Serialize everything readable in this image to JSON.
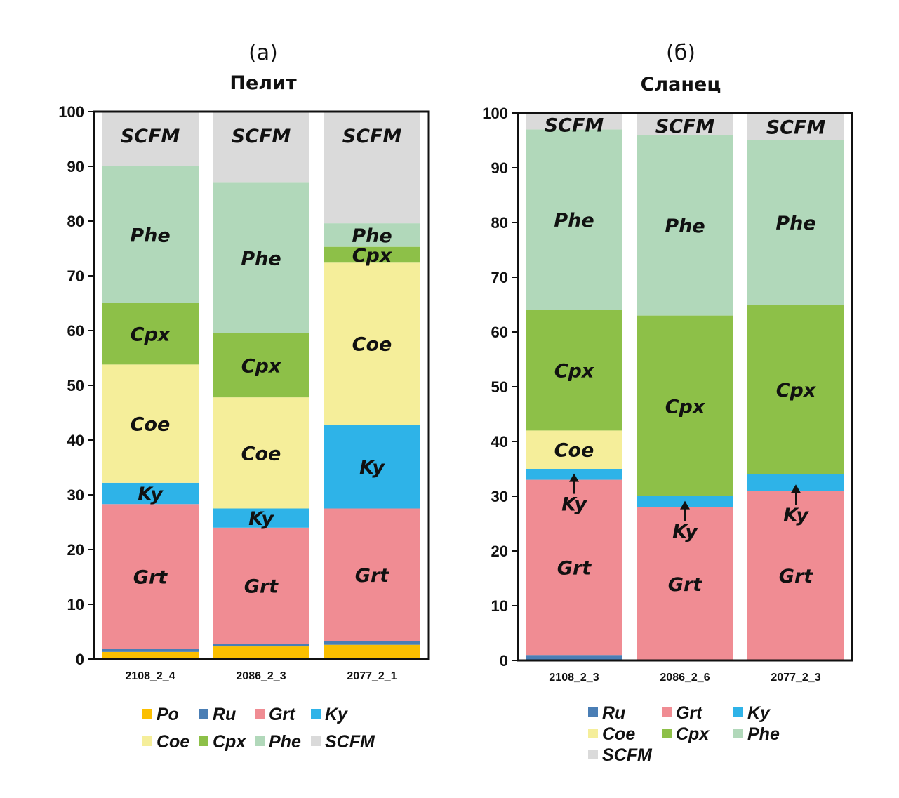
{
  "chart_data": [
    {
      "type": "bar",
      "stacked": true,
      "panel_tag": "(а)",
      "title": "Пелит",
      "xlabel": "",
      "ylabel": "",
      "ylim": [
        0,
        100
      ],
      "yticks": [
        0,
        10,
        20,
        30,
        40,
        50,
        60,
        70,
        80,
        90,
        100
      ],
      "grid": false,
      "legend_position": "bottom",
      "categories": [
        "2108_2_4",
        "2086_2_3",
        "2077_2_1"
      ],
      "series": [
        {
          "name": "Po",
          "color": "#FBBF00",
          "values": [
            1.3,
            2.3,
            2.6
          ]
        },
        {
          "name": "Ru",
          "color": "#4A7EB5",
          "values": [
            0.5,
            0.5,
            0.7
          ]
        },
        {
          "name": "Grt",
          "color": "#F08C93",
          "values": [
            26.5,
            21.2,
            24.2
          ]
        },
        {
          "name": "Ky",
          "color": "#2EB3E8",
          "values": [
            3.9,
            3.5,
            15.3
          ]
        },
        {
          "name": "Coe",
          "color": "#F5EE9A",
          "values": [
            21.6,
            20.3,
            29.6
          ]
        },
        {
          "name": "Cpx",
          "color": "#8DC048",
          "values": [
            11.2,
            11.7,
            2.9
          ]
        },
        {
          "name": "Phe",
          "color": "#B1D8BA",
          "values": [
            25.0,
            27.5,
            4.3
          ]
        },
        {
          "name": "SCFM",
          "color": "#DADADA",
          "values": [
            10.0,
            13.0,
            20.4
          ]
        }
      ],
      "segment_labels": [
        [
          "",
          "",
          "Grt",
          "Ky",
          "Coe",
          "Cpx",
          "Phe",
          "SCFM"
        ],
        [
          "",
          "",
          "Grt",
          "Ky",
          "Coe",
          "Cpx",
          "Phe",
          "SCFM"
        ],
        [
          "",
          "",
          "Grt",
          "Ky",
          "Coe",
          "Cpx",
          "Phe",
          "SCFM"
        ]
      ],
      "legend": [
        "Po",
        "Ru",
        "Grt",
        "Ky",
        "Coe",
        "Cpx",
        "Phe",
        "SCFM"
      ]
    },
    {
      "type": "bar",
      "stacked": true,
      "panel_tag": "(б)",
      "title": "Сланец",
      "xlabel": "",
      "ylabel": "",
      "ylim": [
        0,
        100
      ],
      "yticks": [
        0,
        10,
        20,
        30,
        40,
        50,
        60,
        70,
        80,
        90,
        100
      ],
      "grid": false,
      "legend_position": "bottom",
      "categories": [
        "2108_2_3",
        "2086_2_6",
        "2077_2_3"
      ],
      "series": [
        {
          "name": "Ru",
          "color": "#4A7EB5",
          "values": [
            1,
            0,
            0
          ]
        },
        {
          "name": "Grt",
          "color": "#F08C93",
          "values": [
            32,
            28,
            31
          ]
        },
        {
          "name": "Ky",
          "color": "#2EB3E8",
          "values": [
            2,
            2,
            3
          ]
        },
        {
          "name": "Coe",
          "color": "#F5EE9A",
          "values": [
            7,
            0,
            0
          ]
        },
        {
          "name": "Cpx",
          "color": "#8DC048",
          "values": [
            22,
            33,
            31
          ]
        },
        {
          "name": "Phe",
          "color": "#B1D8BA",
          "values": [
            33,
            33,
            30
          ]
        },
        {
          "name": "SCFM",
          "color": "#DADADA",
          "values": [
            3,
            4,
            5
          ]
        }
      ],
      "segment_labels": [
        [
          "",
          "Grt",
          "Ky",
          "Coe",
          "Cpx",
          "Phe",
          "SCFM"
        ],
        [
          "",
          "Grt",
          "Ky",
          "",
          "Cpx",
          "Phe",
          "SCFM"
        ],
        [
          "",
          "Grt",
          "Ky",
          "",
          "Cpx",
          "Phe",
          "SCFM"
        ]
      ],
      "arrow_annotations": [
        "Ky",
        "Ky",
        "Ky"
      ],
      "legend": [
        "Ru",
        "Grt",
        "Ky",
        "Coe",
        "Cpx",
        "Phe",
        "SCFM"
      ]
    }
  ]
}
